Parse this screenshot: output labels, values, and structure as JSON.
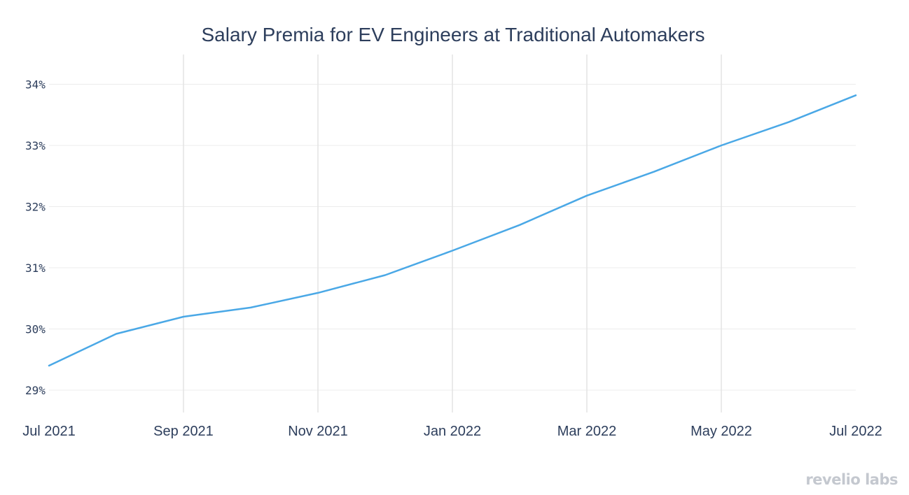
{
  "chart_data": {
    "type": "line",
    "title": "Salary Premia for EV Engineers at Traditional Automakers",
    "xlabel": "",
    "ylabel": "",
    "x": [
      "2021-07",
      "2021-08",
      "2021-09",
      "2021-10",
      "2021-11",
      "2021-12",
      "2022-01",
      "2022-02",
      "2022-03",
      "2022-04",
      "2022-05",
      "2022-06",
      "2022-07"
    ],
    "x_tick_labels": [
      "Jul 2021",
      "Sep 2021",
      "Nov 2021",
      "Jan 2022",
      "Mar 2022",
      "May 2022",
      "Jul 2022"
    ],
    "x_tick_values": [
      "2021-07",
      "2021-09",
      "2021-11",
      "2022-01",
      "2022-03",
      "2022-05",
      "2022-07"
    ],
    "y_tick_labels": [
      "29%",
      "30%",
      "31%",
      "32%",
      "33%",
      "34%"
    ],
    "y_tick_values": [
      29,
      30,
      31,
      32,
      33,
      34
    ],
    "ylim": [
      28.8,
      34.5
    ],
    "series": [
      {
        "color": "#4aa8e6",
        "values": [
          29.4,
          29.92,
          30.2,
          30.35,
          30.59,
          30.88,
          31.28,
          31.7,
          32.18,
          32.57,
          33.0,
          33.38,
          33.82
        ]
      }
    ],
    "grid": {
      "horizontal": true,
      "vertical": true
    },
    "legend": "none"
  },
  "branding": {
    "logo_text": "revelio labs"
  }
}
